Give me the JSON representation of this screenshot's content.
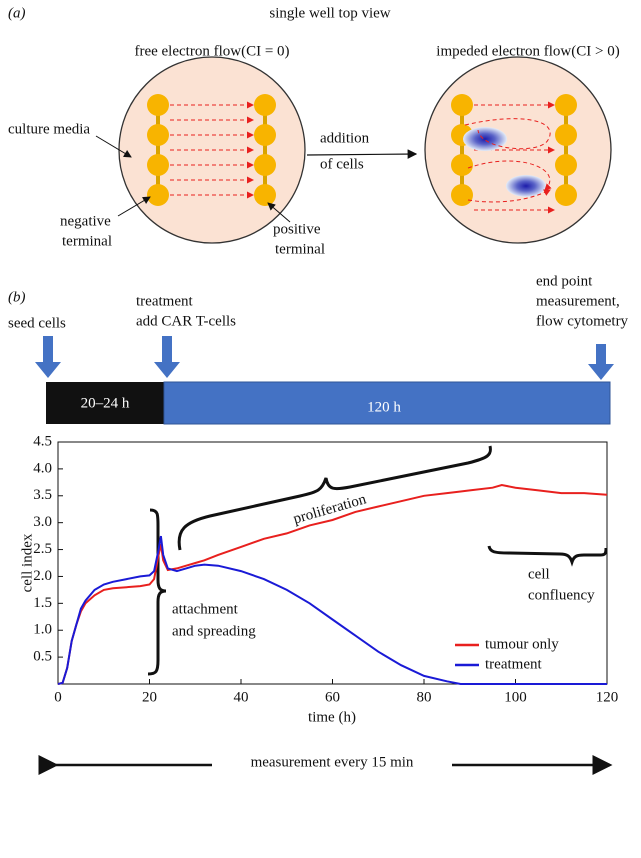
{
  "panel_a": {
    "label": "(a)",
    "title": "single well top view",
    "left_caption": "free electron flow(CI = 0)",
    "right_caption": "impeded electron flow(CI > 0)",
    "culture_media": "culture media",
    "negative_terminal": [
      "negative",
      "terminal"
    ],
    "positive_terminal": [
      "positive",
      "terminal"
    ],
    "addition": [
      "addition",
      "of cells"
    ]
  },
  "panel_b": {
    "label": "(b)",
    "seed": "seed cells",
    "treatment": [
      "treatment",
      "add CAR T-cells"
    ],
    "end_point": [
      "end point",
      "measurement,",
      "flow cytometry"
    ],
    "phase_1": "20–24 h",
    "phase_2": "120 h",
    "footer": "measurement every 15 min"
  },
  "chart_data": {
    "type": "line",
    "x_label": "time (h)",
    "y_label": "cell index",
    "x": [
      0,
      1,
      2,
      3,
      4,
      5,
      6,
      8,
      10,
      12,
      15,
      18,
      20,
      21,
      22,
      22.5,
      23,
      24,
      26,
      28,
      30,
      32,
      35,
      40,
      45,
      50,
      55,
      60,
      65,
      70,
      75,
      80,
      85,
      88,
      90,
      95,
      97,
      100,
      105,
      110,
      115,
      120
    ],
    "series": [
      {
        "name": "tumour only",
        "color": "#e8201e",
        "values": [
          0,
          0.02,
          0.3,
          0.8,
          1.1,
          1.35,
          1.5,
          1.65,
          1.75,
          1.78,
          1.8,
          1.82,
          1.85,
          1.95,
          2.4,
          2.6,
          2.3,
          2.12,
          2.15,
          2.2,
          2.25,
          2.3,
          2.4,
          2.55,
          2.7,
          2.8,
          2.95,
          3.05,
          3.2,
          3.3,
          3.4,
          3.5,
          3.55,
          3.58,
          3.6,
          3.65,
          3.7,
          3.65,
          3.6,
          3.55,
          3.55,
          3.52
        ]
      },
      {
        "name": "treatment",
        "color": "#1a1ad6",
        "values": [
          0,
          0.02,
          0.3,
          0.8,
          1.1,
          1.4,
          1.55,
          1.75,
          1.85,
          1.9,
          1.95,
          2.0,
          2.02,
          2.1,
          2.5,
          2.75,
          2.4,
          2.15,
          2.1,
          2.15,
          2.2,
          2.22,
          2.2,
          2.1,
          1.95,
          1.75,
          1.5,
          1.2,
          0.9,
          0.6,
          0.35,
          0.15,
          0.05,
          0,
          0,
          0,
          0,
          0,
          0,
          0,
          0,
          0
        ]
      }
    ],
    "xlim": [
      0,
      120
    ],
    "xticks": [
      0,
      20,
      40,
      60,
      80,
      100,
      120
    ],
    "ylim": [
      0,
      4.5
    ],
    "yticks": [
      0.5,
      {
        "value": 1,
        "label": "1.0"
      },
      1.5,
      {
        "value": 2,
        "label": "2.0"
      },
      2.5,
      {
        "value": 3,
        "label": "3.0"
      },
      3.5,
      {
        "value": 4,
        "label": "4.0"
      },
      4.5
    ],
    "legend": "lower right",
    "annotations": [
      {
        "lines": [
          "proliferation"
        ]
      },
      {
        "lines": [
          "cell",
          "confluency"
        ]
      },
      {
        "lines": [
          "attachment",
          "and spreading"
        ]
      }
    ]
  }
}
